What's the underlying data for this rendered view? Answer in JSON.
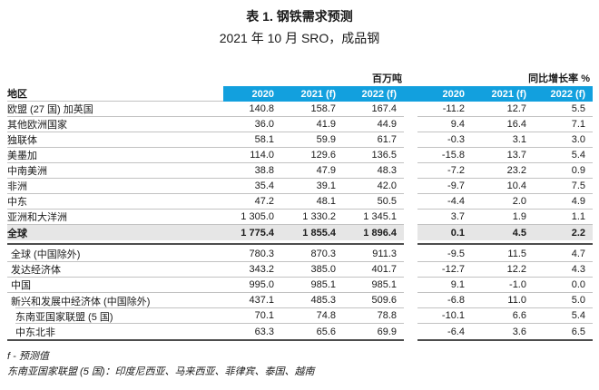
{
  "page": {
    "title": "表 1. 钢铁需求预测",
    "subtitle": "2021 年 10 月 SRO，成品钢"
  },
  "colors": {
    "header_blue": "#12A0DE",
    "total_row_gray": "#E6E6E6"
  },
  "table": {
    "region_col_header": "地区",
    "unit_group_1": "百万吨",
    "unit_group_2": "同比增长率 %",
    "col_headers": [
      "2020",
      "2021 (f)",
      "2022 (f)",
      "2020",
      "2021 (f)",
      "2022 (f)"
    ],
    "rows": [
      {
        "label": "欧盟 (27 国) 加英国",
        "values": [
          "140.8",
          "158.7",
          "167.4",
          "-11.2",
          "12.7",
          "5.5"
        ]
      },
      {
        "label": "其他欧洲国家",
        "values": [
          "36.0",
          "41.9",
          "44.9",
          "9.4",
          "16.4",
          "7.1"
        ]
      },
      {
        "label": "独联体",
        "values": [
          "58.1",
          "59.9",
          "61.7",
          "-0.3",
          "3.1",
          "3.0"
        ]
      },
      {
        "label": "美墨加",
        "values": [
          "114.0",
          "129.6",
          "136.5",
          "-15.8",
          "13.7",
          "5.4"
        ]
      },
      {
        "label": "中南美洲",
        "values": [
          "38.8",
          "47.9",
          "48.3",
          "-7.2",
          "23.2",
          "0.9"
        ]
      },
      {
        "label": "非洲",
        "values": [
          "35.4",
          "39.1",
          "42.0",
          "-9.7",
          "10.4",
          "7.5"
        ]
      },
      {
        "label": "中东",
        "values": [
          "47.2",
          "48.1",
          "50.5",
          "-4.4",
          "2.0",
          "4.9"
        ]
      },
      {
        "label": "亚洲和大洋洲",
        "values": [
          "1 305.0",
          "1 330.2",
          "1 345.1",
          "3.7",
          "1.9",
          "1.1"
        ]
      },
      {
        "label": "全球",
        "values": [
          "1 775.4",
          "1 855.4",
          "1 896.4",
          "0.1",
          "4.5",
          "2.2"
        ]
      },
      {
        "label": "全球 (中国除外)",
        "values": [
          "780.3",
          "870.3",
          "911.3",
          "-9.5",
          "11.5",
          "4.7"
        ]
      },
      {
        "label": "发达经济体",
        "values": [
          "343.2",
          "385.0",
          "401.7",
          "-12.7",
          "12.2",
          "4.3"
        ]
      },
      {
        "label": "中国",
        "values": [
          "995.0",
          "985.1",
          "985.1",
          "9.1",
          "-1.0",
          "0.0"
        ]
      },
      {
        "label": "新兴和发展中经济体 (中国除外)",
        "values": [
          "437.1",
          "485.3",
          "509.6",
          "-6.8",
          "11.0",
          "5.0"
        ]
      },
      {
        "label": "东南亚国家联盟 (5 国)",
        "values": [
          "70.1",
          "74.8",
          "78.8",
          "-10.1",
          "6.6",
          "5.4"
        ]
      },
      {
        "label": "中东北非",
        "values": [
          "63.3",
          "65.6",
          "69.9",
          "-6.4",
          "3.6",
          "6.5"
        ]
      }
    ]
  },
  "footnotes": {
    "forecast_note": "f - 预测值",
    "asean_note": "东南亚国家联盟 (5 国)：印度尼西亚、马来西亚、菲律宾、泰国、越南"
  }
}
